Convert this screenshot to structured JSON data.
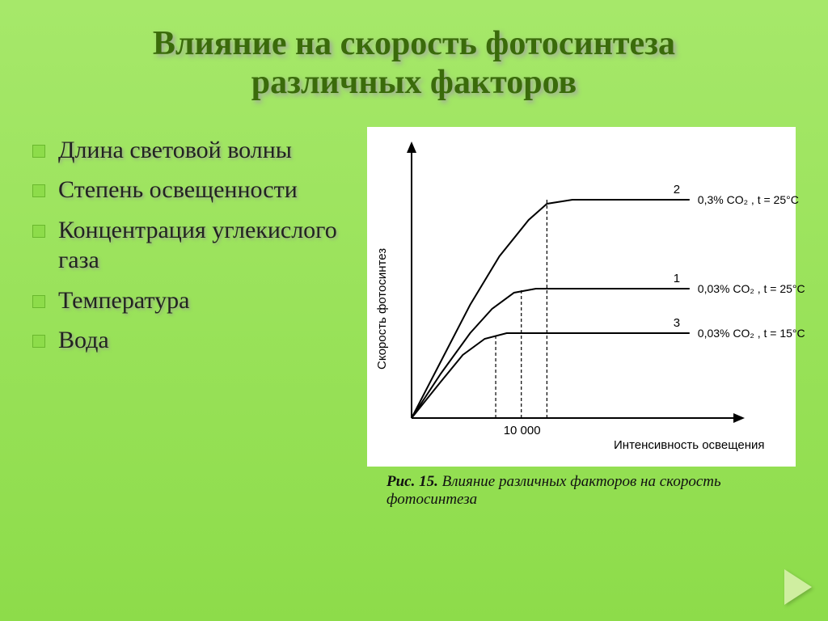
{
  "title_line1": "Влияние на скорость фотосинтеза",
  "title_line2": "различных факторов",
  "bullets": [
    "Длина световой волны",
    "Степень освещенности",
    "Концентрация углекислого газа",
    "Температура",
    "Вода"
  ],
  "caption_prefix": "Рис. 15.",
  "caption_text": "Влияние различных факторов на скорость фотосинтеза",
  "chart": {
    "type": "line",
    "background_color": "#ffffff",
    "axis_color": "#000000",
    "line_color": "#000000",
    "line_width": 2,
    "dash_pattern": "4 3",
    "text_color": "#000000",
    "font_family": "Arial",
    "y_label": "Скорость фотосинтез",
    "y_label_fontsize": 15,
    "x_label": "Интенсивность освещения",
    "x_label_fontsize": 15,
    "x_tick_label": "10 000",
    "x_tick_fontsize": 15,
    "x_range": [
      0,
      420
    ],
    "y_range": [
      0,
      320
    ],
    "curves": [
      {
        "id": "2",
        "label": "0,3% CO₂ , t = 25°C",
        "drop_x": 185,
        "plateau_y": 270,
        "points": [
          [
            0,
            0
          ],
          [
            40,
            70
          ],
          [
            80,
            140
          ],
          [
            120,
            200
          ],
          [
            160,
            245
          ],
          [
            185,
            265
          ],
          [
            220,
            270
          ],
          [
            300,
            270
          ],
          [
            380,
            270
          ]
        ]
      },
      {
        "id": "1",
        "label": "0,03% CO₂ , t = 25°C",
        "drop_x": 150,
        "plateau_y": 160,
        "points": [
          [
            0,
            0
          ],
          [
            40,
            55
          ],
          [
            80,
            105
          ],
          [
            110,
            135
          ],
          [
            140,
            155
          ],
          [
            170,
            160
          ],
          [
            250,
            160
          ],
          [
            380,
            160
          ]
        ]
      },
      {
        "id": "3",
        "label": "0,03% CO₂ , t = 15°C",
        "drop_x": 115,
        "plateau_y": 105,
        "points": [
          [
            0,
            0
          ],
          [
            40,
            45
          ],
          [
            70,
            78
          ],
          [
            100,
            98
          ],
          [
            130,
            105
          ],
          [
            200,
            105
          ],
          [
            380,
            105
          ]
        ]
      }
    ],
    "annotation_fontsize": 14
  },
  "colors": {
    "slide_bg_top": "#a6e86a",
    "slide_bg_bottom": "#8ddc4a",
    "title_color": "#3a6b0a",
    "bullet_square": "#8ddc4a",
    "nav_triangle": "#cfeea0"
  }
}
